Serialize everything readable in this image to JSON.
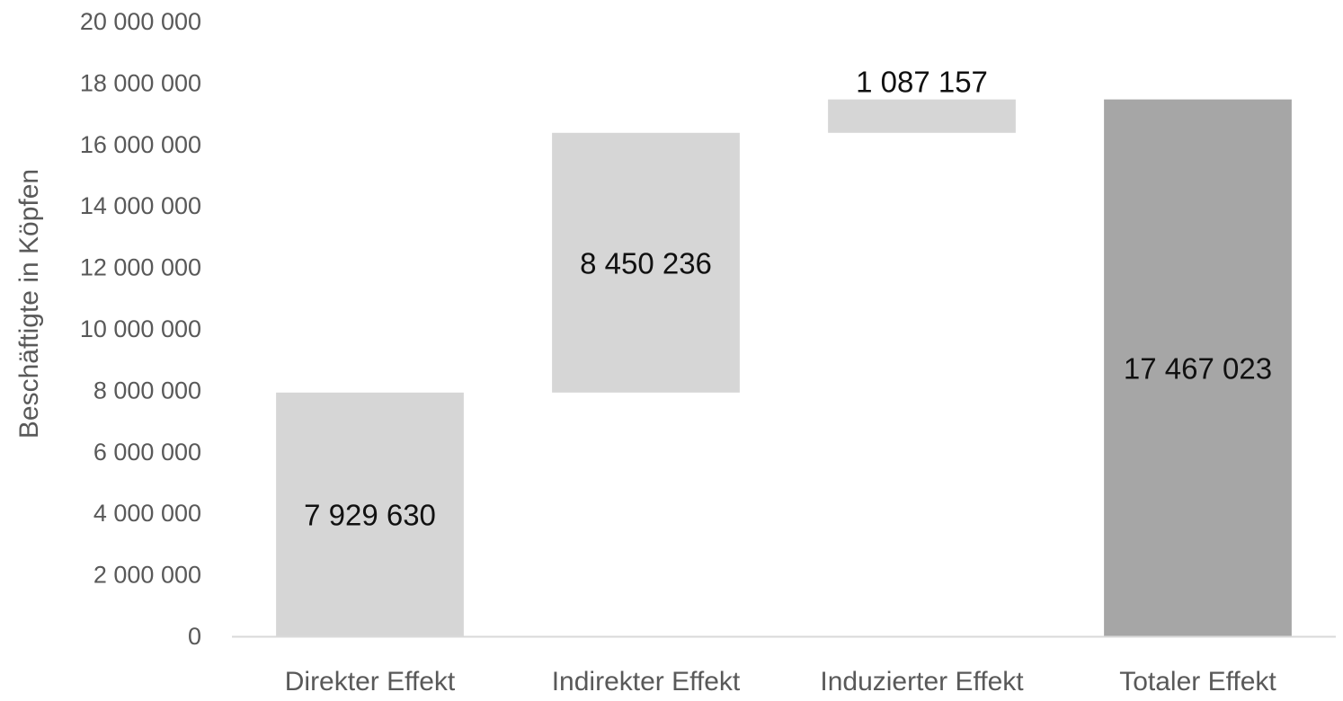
{
  "chart_data": {
    "type": "bar",
    "subtype": "waterfall",
    "title": "",
    "xlabel": "",
    "ylabel": "Beschäftigte in Köpfen",
    "ylim": [
      0,
      20000000
    ],
    "yticks": [
      0,
      2000000,
      4000000,
      6000000,
      8000000,
      10000000,
      12000000,
      14000000,
      16000000,
      18000000,
      20000000
    ],
    "ytick_labels": [
      "0",
      "2 000 000",
      "4 000 000",
      "6 000 000",
      "8 000 000",
      "10 000 000",
      "12 000 000",
      "14 000 000",
      "16 000 000",
      "18 000 000",
      "20 000 000"
    ],
    "grid": false,
    "legend": "none",
    "categories": [
      "Direkter Effekt",
      "Indirekter Effekt",
      "Induzierter Effekt",
      "Totaler Effekt"
    ],
    "values": [
      7929630,
      8450236,
      1087157,
      17467023
    ],
    "bases": [
      0,
      7929630,
      16379866,
      0
    ],
    "data_labels": [
      "7 929 630",
      "8 450 236",
      "1 087 157",
      "17 467 023"
    ],
    "label_positions": [
      "inside",
      "inside",
      "above",
      "inside"
    ],
    "colors": [
      "#d6d6d6",
      "#d6d6d6",
      "#d6d6d6",
      "#a6a6a6"
    ]
  }
}
